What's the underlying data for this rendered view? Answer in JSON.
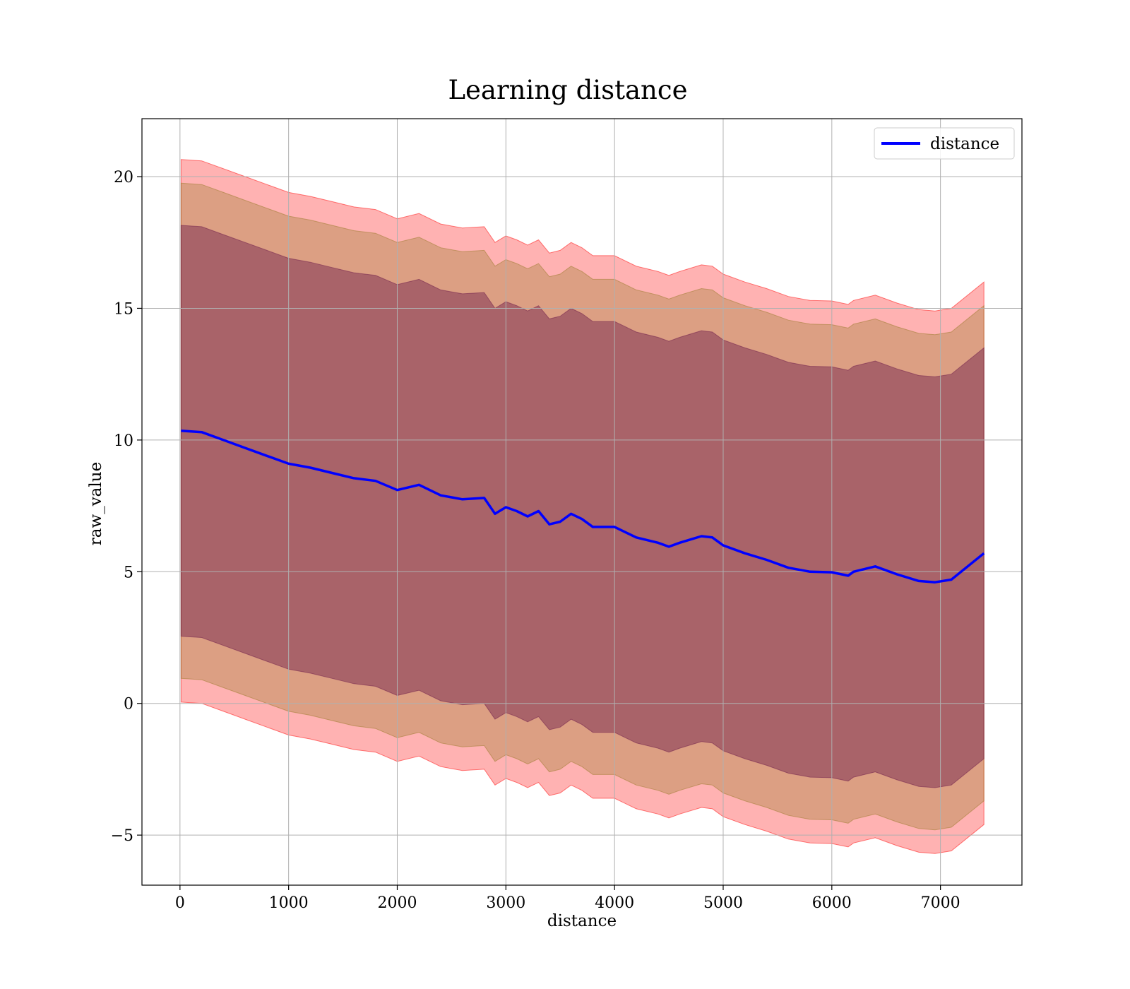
{
  "chart_data": {
    "type": "line",
    "title": "Learning distance",
    "xlabel": "distance",
    "ylabel": "raw_value",
    "xlim": [
      -350,
      7750
    ],
    "ylim": [
      -6.9,
      22.2
    ],
    "xticks": [
      0,
      1000,
      2000,
      3000,
      4000,
      5000,
      6000,
      7000
    ],
    "yticks": [
      -5,
      0,
      5,
      10,
      15,
      20
    ],
    "xtick_labels": [
      "0",
      "1000",
      "2000",
      "3000",
      "4000",
      "5000",
      "6000",
      "7000"
    ],
    "ytick_labels": [
      "−5",
      "0",
      "5",
      "10",
      "15",
      "20"
    ],
    "grid": true,
    "legend": {
      "position": "top-right",
      "entries": [
        "distance"
      ]
    },
    "x": [
      10,
      200,
      400,
      600,
      800,
      1000,
      1200,
      1400,
      1600,
      1800,
      2000,
      2200,
      2400,
      2600,
      2800,
      2900,
      3000,
      3100,
      3200,
      3300,
      3400,
      3500,
      3600,
      3700,
      3800,
      4000,
      4200,
      4400,
      4500,
      4600,
      4800,
      4900,
      5000,
      5200,
      5400,
      5600,
      5800,
      6000,
      6150,
      6200,
      6400,
      6600,
      6800,
      6950,
      7100,
      7400
    ],
    "series": [
      {
        "name": "distance",
        "color": "#0000ff",
        "values": [
          10.35,
          10.3,
          10.0,
          9.7,
          9.4,
          9.1,
          8.95,
          8.75,
          8.55,
          8.45,
          8.1,
          8.3,
          7.9,
          7.75,
          7.8,
          7.2,
          7.45,
          7.3,
          7.1,
          7.3,
          6.8,
          6.9,
          7.2,
          7.0,
          6.7,
          6.7,
          6.3,
          6.1,
          5.95,
          6.1,
          6.35,
          6.3,
          6.0,
          5.7,
          5.45,
          5.15,
          5.0,
          4.98,
          4.85,
          5.0,
          5.2,
          4.9,
          4.65,
          4.6,
          4.7,
          5.7
        ]
      }
    ],
    "bands": [
      {
        "name": "band-outer",
        "color": "#ff0000",
        "opacity": 0.3,
        "half_width": 10.3
      },
      {
        "name": "band-middle",
        "color": "#9a7a2a",
        "opacity": 0.35,
        "half_width": 9.4
      },
      {
        "name": "band-inner",
        "color": "#6b1a4a",
        "opacity": 0.45,
        "half_width": 7.8
      }
    ]
  }
}
